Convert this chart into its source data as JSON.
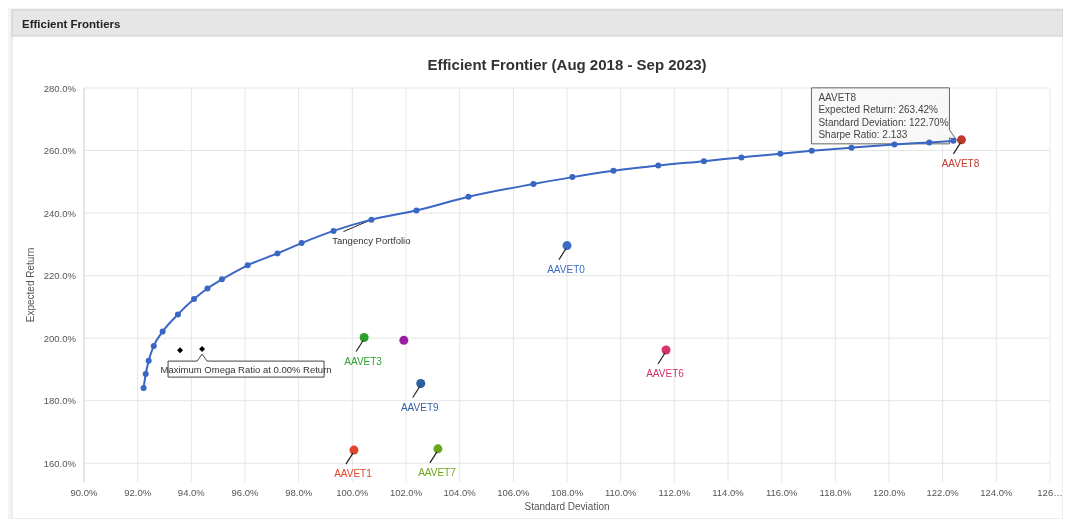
{
  "chart_data": {
    "type": "scatter",
    "subtitle": "Efficient Frontiers",
    "title": "Efficient Frontier (Aug 2018 - Sep 2023)",
    "xlabel": "Standard Deviation",
    "ylabel": "Expected Return",
    "xlim": [
      90,
      126
    ],
    "ylim": [
      154,
      280
    ],
    "xticks": [
      {
        "value": 90,
        "label": "90.0%"
      },
      {
        "value": 92,
        "label": "92.0%"
      },
      {
        "value": 94,
        "label": "94.0%"
      },
      {
        "value": 96,
        "label": "96.0%"
      },
      {
        "value": 98,
        "label": "98.0%"
      },
      {
        "value": 100,
        "label": "100.0%"
      },
      {
        "value": 102,
        "label": "102.0%"
      },
      {
        "value": 104,
        "label": "104.0%"
      },
      {
        "value": 106,
        "label": "106.0%"
      },
      {
        "value": 108,
        "label": "108.0%"
      },
      {
        "value": 110,
        "label": "110.0%"
      },
      {
        "value": 112,
        "label": "112.0%"
      },
      {
        "value": 114,
        "label": "114.0%"
      },
      {
        "value": 116,
        "label": "116.0%"
      },
      {
        "value": 118,
        "label": "118.0%"
      },
      {
        "value": 120,
        "label": "120.0%"
      },
      {
        "value": 122,
        "label": "122.0%"
      },
      {
        "value": 124,
        "label": "124.0%"
      },
      {
        "value": 126,
        "label": "126…"
      }
    ],
    "yticks": [
      {
        "value": 160,
        "label": "160.0%"
      },
      {
        "value": 180,
        "label": "180.0%"
      },
      {
        "value": 200,
        "label": "200.0%"
      },
      {
        "value": 220,
        "label": "220.0%"
      },
      {
        "value": 240,
        "label": "240.0%"
      },
      {
        "value": 260,
        "label": "260.0%"
      },
      {
        "value": 280,
        "label": "280.0%"
      }
    ],
    "grid": true,
    "legend": false,
    "marker": "circle",
    "series": [
      {
        "type": "line",
        "color": "#3a66c4",
        "x": [
          92.22,
          92.3,
          92.41,
          92.6,
          92.93,
          93.5,
          94.1,
          94.6,
          95.14,
          96.1,
          97.21,
          98.11,
          99.3,
          100.71,
          102.39,
          104.33,
          106.75,
          108.2,
          109.73,
          111.4,
          113.1,
          114.5,
          115.95,
          117.12,
          118.6,
          120.2,
          121.5,
          122.4
        ],
        "values": [
          184.1,
          188.5,
          192.8,
          197.5,
          202.1,
          207.6,
          212.5,
          215.9,
          218.8,
          223.3,
          227.1,
          230.4,
          234.3,
          237.9,
          240.8,
          245.2,
          249.3,
          251.5,
          253.5,
          255.2,
          256.6,
          257.8,
          259.0,
          259.9,
          260.9,
          261.9,
          262.6,
          263.1
        ]
      },
      {
        "name": "AAVET8",
        "color": "#c0392b",
        "x": [
          122.7
        ],
        "values": [
          263.42
        ]
      },
      {
        "name": "AAVET0",
        "color": "#3b6cc4",
        "x": [
          108.0
        ],
        "values": [
          229.6
        ]
      },
      {
        "name": "AAVET3",
        "color": "#2ca02c",
        "x": [
          100.44
        ],
        "values": [
          200.2
        ]
      },
      {
        "color": "#9b1fa0",
        "x": [
          101.92
        ],
        "values": [
          199.3
        ]
      },
      {
        "name": "AAVET9",
        "color": "#2f5f9e",
        "x": [
          102.55
        ],
        "values": [
          185.5
        ]
      },
      {
        "name": "AAVET6",
        "color": "#d6336c",
        "x": [
          111.69
        ],
        "values": [
          196.2
        ]
      },
      {
        "name": "AAVET1",
        "color": "#e0452b",
        "x": [
          100.06
        ],
        "values": [
          164.2
        ]
      },
      {
        "name": "AAVET7",
        "color": "#6aa51a",
        "x": [
          103.19
        ],
        "values": [
          164.6
        ]
      },
      {
        "color": "#000000",
        "marker": "diamond",
        "x": [
          93.58,
          94.4
        ],
        "values": [
          196.1,
          196.5
        ]
      }
    ],
    "annotations": [
      {
        "text": "Tangency Portfolio",
        "x": 100.71,
        "y": 237.9
      },
      {
        "text": "Maximum Omega Ratio at 0.00% Return",
        "x": 94.4,
        "y": 196.5
      },
      {
        "text": "AAVET8\nExpected Return: 263.42%\nStandard Deviation: 122.70%\nSharpe Ratio: 2.133",
        "x": 122.7,
        "y": 263.42
      }
    ]
  }
}
